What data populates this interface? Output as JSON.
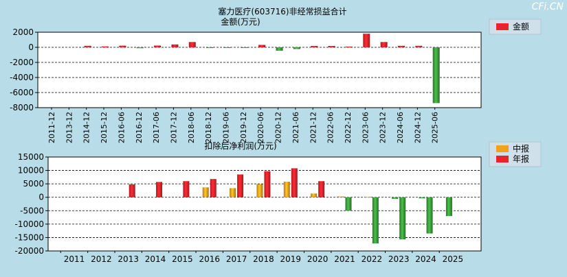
{
  "watermark": "CFi.CN",
  "colors": {
    "background": "#b9dde8",
    "plot_bg": "#ffffff",
    "red": "#e8232a",
    "green": "#3a9a3a",
    "orange": "#f2a11f",
    "legend_bg": "#cfe0ea"
  },
  "chart_data": [
    {
      "type": "bar",
      "title": "塞力医疗(603716)非经常损益合计",
      "subtitle": "金额(万元)",
      "legend": {
        "position": "right",
        "entries": [
          "金额"
        ]
      },
      "grid": true,
      "ylim": [
        -8000,
        2000
      ],
      "yticks": [
        2000,
        0,
        -2000,
        -4000,
        -6000,
        -8000
      ],
      "categories": [
        "2011-12",
        "2013-12",
        "2014-12",
        "2015-12",
        "2016-06",
        "2016-12",
        "2017-06",
        "2017-12",
        "2018-06",
        "2018-12",
        "2019-06",
        "2019-12",
        "2020-06",
        "2020-12",
        "2021-06",
        "2021-12",
        "2022-06",
        "2022-12",
        "2023-06",
        "2023-12",
        "2024-06",
        "2024-12",
        "2025-06"
      ],
      "series": [
        {
          "name": "金额",
          "values": [
            0,
            0,
            200,
            120,
            220,
            -120,
            230,
            380,
            700,
            -100,
            -80,
            -60,
            320,
            -450,
            -230,
            180,
            180,
            90,
            1800,
            700,
            200,
            200,
            -7400
          ]
        }
      ]
    },
    {
      "type": "bar",
      "title": "扣除后净利润(万元)",
      "legend": {
        "position": "right",
        "entries": [
          "中报",
          "年报"
        ]
      },
      "grid": true,
      "ylim": [
        -20000,
        15000
      ],
      "yticks": [
        15000,
        10000,
        5000,
        0,
        -5000,
        -10000,
        -15000,
        -20000
      ],
      "categories": [
        "2011",
        "2012",
        "2013",
        "2014",
        "2015",
        "2016",
        "2017",
        "2018",
        "2019",
        "2020",
        "2021",
        "2022",
        "2023",
        "2024",
        "2025"
      ],
      "series": [
        {
          "name": "中报",
          "values": [
            0,
            0,
            0,
            0,
            0,
            3700,
            3400,
            4900,
            5800,
            1400,
            300,
            200,
            -600,
            -400,
            -7000
          ]
        },
        {
          "name": "年报",
          "values": [
            0,
            0,
            4800,
            5700,
            6000,
            6800,
            8500,
            9700,
            10800,
            6000,
            -5000,
            -17200,
            -15700,
            -13500,
            null
          ]
        }
      ]
    }
  ]
}
